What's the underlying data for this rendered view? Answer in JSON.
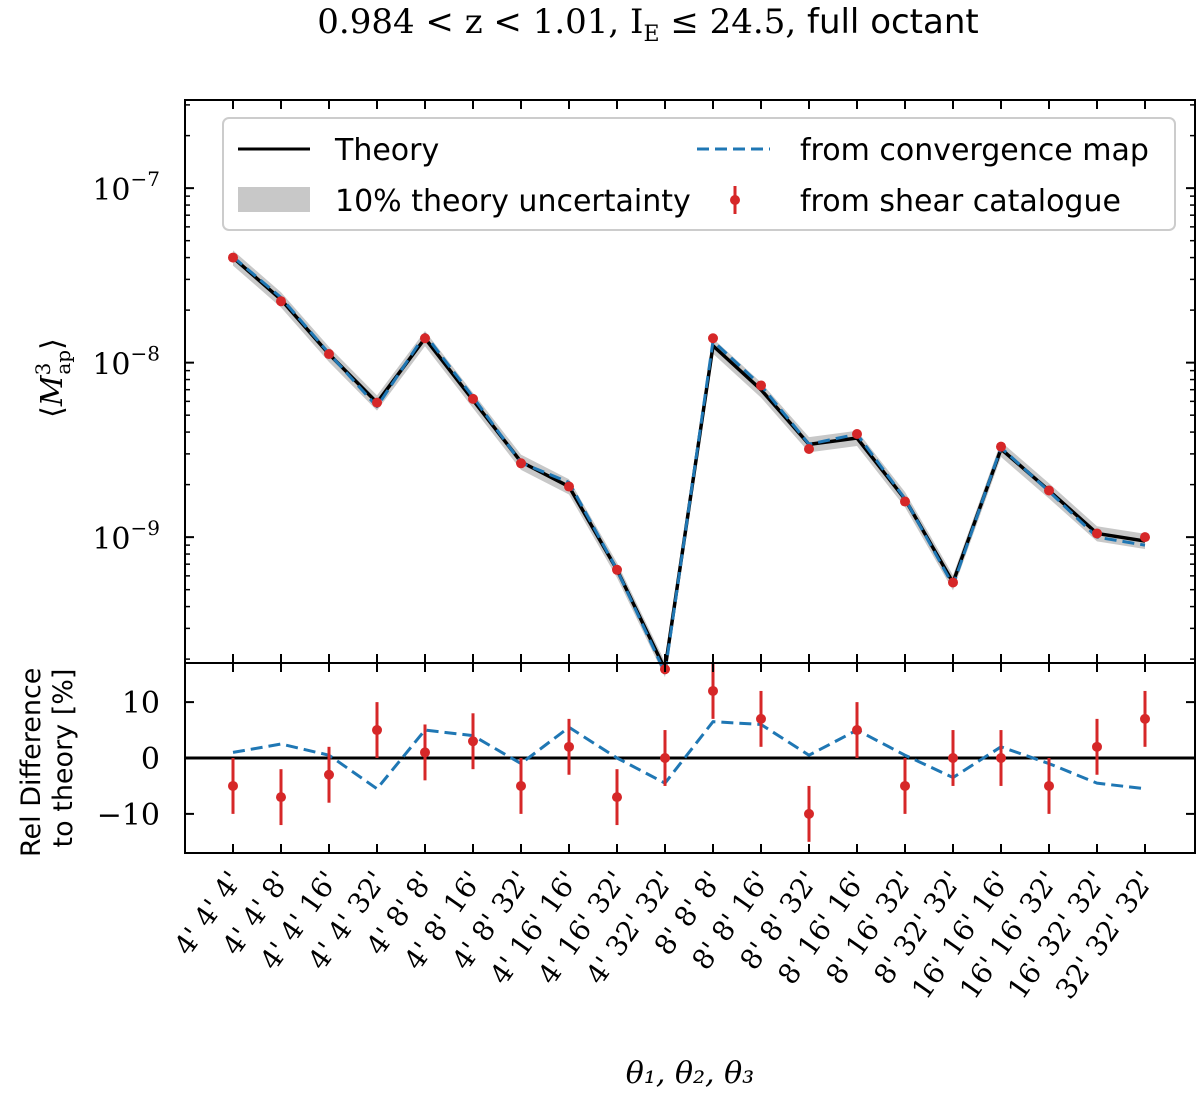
{
  "chart_data": [
    {
      "panel": "main",
      "type": "line",
      "title": "0.984 < z < 1.01, I_E ≤ 24.5, full octant",
      "title_parts": {
        "math": "0.984 < z < 1.01, I",
        "sub": "E",
        "math2": " ≤ 24.5, ",
        "plain": "full octant"
      },
      "ylabel": "⟨M³ap⟩",
      "ylabel_parts": {
        "left": "⟨",
        "M": "M",
        "sup": "3",
        "sub": "ap",
        "right": "⟩"
      },
      "yscale": "log",
      "ylim": [
        1.9e-10,
        3.2e-07
      ],
      "yticks": [
        {
          "value": 1e-07,
          "base": "10",
          "exp": "−7"
        },
        {
          "value": 1e-08,
          "base": "10",
          "exp": "−8"
        },
        {
          "value": 1e-09,
          "base": "10",
          "exp": "−9"
        }
      ],
      "categories": [
        "4' 4' 4'",
        "4' 4' 8'",
        "4' 4' 16'",
        "4' 4' 32'",
        "4' 8' 8'",
        "4' 8' 16'",
        "4' 8' 32'",
        "4' 16' 16'",
        "4' 16' 32'",
        "4' 32' 32'",
        "8' 8' 8'",
        "8' 8' 16'",
        "8' 8' 32'",
        "8' 16' 16'",
        "8' 16' 32'",
        "8' 32' 32'",
        "16' 16' 16'",
        "16' 16' 32'",
        "16' 32' 32'",
        "32' 32' 32'"
      ],
      "legend_position": "top",
      "series": [
        {
          "name": "Theory",
          "kind": "line",
          "color": "#000000",
          "values": [
            4e-08,
            2.3e-08,
            1.12e-08,
            5.9e-09,
            1.38e-08,
            6.1e-09,
            2.7e-09,
            1.95e-09,
            6.5e-10,
            1.75e-10,
            1.25e-08,
            7e-09,
            3.4e-09,
            3.7e-09,
            1.65e-09,
            5.5e-10,
            3.2e-09,
            1.85e-09,
            1.05e-09,
            9.5e-10
          ]
        },
        {
          "name": "10% theory uncertainty",
          "kind": "band",
          "color": "#c8c8c8",
          "relative_width": 0.1
        },
        {
          "name": "from convergence map",
          "kind": "dashed",
          "color": "#1f77b4",
          "values": [
            4.04e-08,
            2.36e-08,
            1.13e-08,
            5.6e-09,
            1.45e-08,
            6.35e-09,
            2.67e-09,
            2.06e-09,
            6.5e-10,
            1.67e-10,
            1.33e-08,
            7.4e-09,
            3.41e-09,
            3.89e-09,
            1.66e-09,
            5.3e-10,
            3.26e-09,
            1.83e-09,
            1e-09,
            9e-10
          ]
        },
        {
          "name": "from shear catalogue",
          "kind": "errorbar",
          "color": "#d62728",
          "values": [
            4e-08,
            2.25e-08,
            1.12e-08,
            5.9e-09,
            1.38e-08,
            6.2e-09,
            2.65e-09,
            1.95e-09,
            6.5e-10,
            1.75e-10,
            1.38e-08,
            7.4e-09,
            3.2e-09,
            3.9e-09,
            1.6e-09,
            5.5e-10,
            3.3e-09,
            1.85e-09,
            1.05e-09,
            1e-09
          ]
        }
      ],
      "legend": [
        {
          "label": "Theory",
          "kind": "line",
          "color": "#000000"
        },
        {
          "label": "10% theory uncertainty",
          "kind": "band",
          "color": "#c8c8c8"
        },
        {
          "label": "from convergence map",
          "kind": "dashed",
          "color": "#1f77b4"
        },
        {
          "label": "from shear catalogue",
          "kind": "errorbar",
          "color": "#d62728"
        }
      ]
    },
    {
      "panel": "residual",
      "type": "line",
      "ylabel_lines": [
        "Rel Difference",
        "to theory [%]"
      ],
      "xlabel": "θ₁, θ₂, θ₃",
      "ylim": [
        -17,
        17
      ],
      "yticks": [
        {
          "value": 10,
          "label": "10"
        },
        {
          "value": 0,
          "label": "0"
        },
        {
          "value": -10,
          "label": "−10"
        }
      ],
      "zero_line": true,
      "series": [
        {
          "name": "from convergence map",
          "kind": "dashed",
          "color": "#1f77b4",
          "values": [
            1.0,
            2.5,
            0.5,
            -5.5,
            5.0,
            4.0,
            -1.0,
            5.5,
            0.0,
            -4.5,
            6.5,
            6.0,
            0.5,
            5.0,
            0.5,
            -3.5,
            2.0,
            -1.0,
            -4.5,
            -5.5
          ]
        },
        {
          "name": "from shear catalogue",
          "kind": "errorbar",
          "color": "#d62728",
          "values": [
            -5,
            -7,
            -3,
            5,
            1,
            3,
            -5,
            2,
            -7,
            0,
            12,
            7,
            -10,
            5,
            -5,
            0,
            0,
            -5,
            2,
            7
          ],
          "errors": [
            5,
            5,
            5,
            5,
            5,
            5,
            5,
            5,
            5,
            5,
            5,
            5,
            5,
            5,
            5,
            5,
            5,
            5,
            5,
            5
          ]
        }
      ]
    }
  ]
}
